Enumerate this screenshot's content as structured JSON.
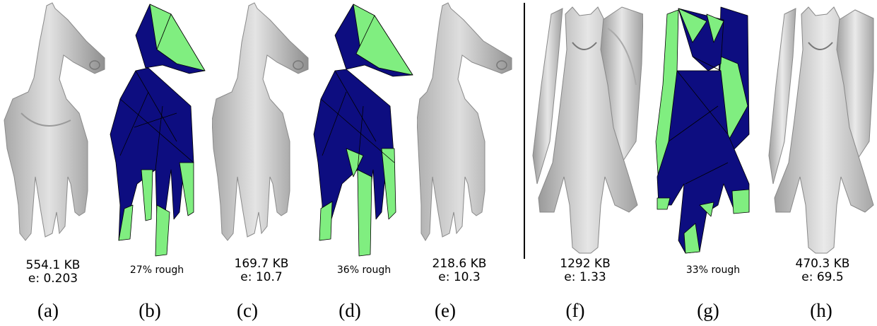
{
  "colors": {
    "mesh_gray": "#c8c8c8",
    "mesh_shadow": "#9a9a9a",
    "rough_blue": "#0d0d80",
    "rough_green": "#80ee80",
    "edge": "#000000"
  },
  "panels": [
    {
      "label": "(a)",
      "subject": "horse",
      "style": "shaded",
      "size": "554.1 KB",
      "error": "e: 0.203"
    },
    {
      "label": "(b)",
      "subject": "horse",
      "style": "rough",
      "rough": "27% rough"
    },
    {
      "label": "(c)",
      "subject": "horse",
      "style": "shaded",
      "size": "169.7 KB",
      "error": "e: 10.7"
    },
    {
      "label": "(d)",
      "subject": "horse",
      "style": "rough",
      "rough": "36% rough"
    },
    {
      "label": "(e)",
      "subject": "horse",
      "style": "shaded",
      "size": "218.6 KB",
      "error": "e: 10.3"
    },
    {
      "label": "(f)",
      "subject": "griffin",
      "style": "shaded",
      "size": "1292 KB",
      "error": "e: 1.33"
    },
    {
      "label": "(g)",
      "subject": "griffin",
      "style": "rough",
      "rough": "33% rough"
    },
    {
      "label": "(h)",
      "subject": "griffin",
      "style": "shaded",
      "size": "470.3 KB",
      "error": "e: 69.5"
    }
  ]
}
